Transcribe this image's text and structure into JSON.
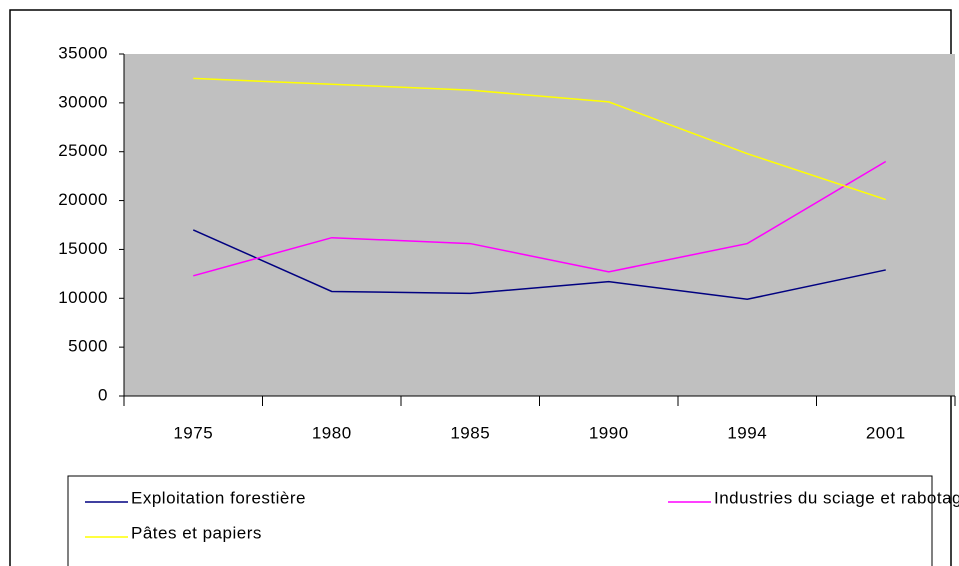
{
  "chart_data": {
    "type": "line",
    "categories": [
      "1975",
      "1980",
      "1985",
      "1990",
      "1994",
      "2001"
    ],
    "series": [
      {
        "name": "Exploitation forestière",
        "color": "#000080",
        "values": [
          17000,
          10700,
          10500,
          11700,
          9900,
          12900
        ]
      },
      {
        "name": "Industries du sciage et rabotage",
        "color": "#FF00FF",
        "values": [
          12300,
          16200,
          15600,
          12700,
          15600,
          24000
        ]
      },
      {
        "name": "Pâtes et papiers",
        "color": "#FFFF00",
        "values": [
          32500,
          31900,
          31300,
          30100,
          24800,
          20100
        ]
      }
    ],
    "ylim": [
      0,
      35000
    ],
    "yticks": [
      0,
      5000,
      10000,
      15000,
      20000,
      25000,
      30000,
      35000
    ],
    "plot_background": "#C0C0C0",
    "legend": "bottom"
  }
}
